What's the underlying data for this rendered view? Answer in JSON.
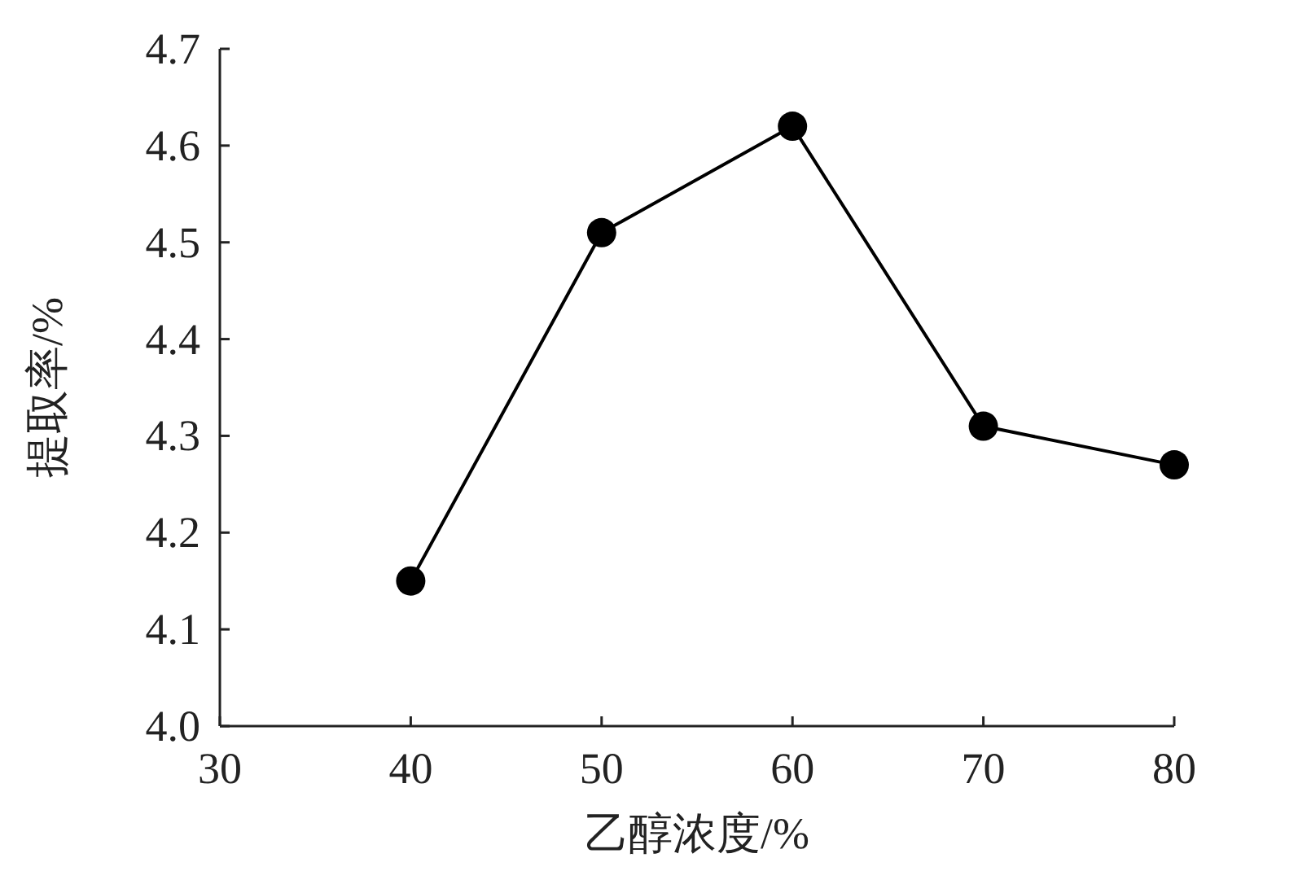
{
  "chart_data": {
    "type": "line",
    "xlabel": "乙醇浓度/%",
    "ylabel": "提取率/%",
    "x": [
      40,
      50,
      60,
      70,
      80
    ],
    "series": [
      {
        "color": "#000000",
        "values": [
          4.15,
          4.51,
          4.62,
          4.31,
          4.27
        ]
      }
    ],
    "marker": "circle",
    "line_style": "solid",
    "xlim": [
      30,
      80
    ],
    "ylim": [
      4.0,
      4.7
    ],
    "xticks": [
      30,
      40,
      50,
      60,
      70,
      80
    ],
    "yticks": [
      {
        "value": 4.0,
        "label": "4.0"
      },
      {
        "value": 4.1,
        "label": "4.1"
      },
      {
        "value": 4.2,
        "label": "4.2"
      },
      {
        "value": 4.3,
        "label": "4.3"
      },
      {
        "value": 4.4,
        "label": "4.4"
      },
      {
        "value": 4.5,
        "label": "4.5"
      },
      {
        "value": 4.6,
        "label": "4.6"
      },
      {
        "value": 4.7,
        "label": "4.7"
      }
    ]
  }
}
